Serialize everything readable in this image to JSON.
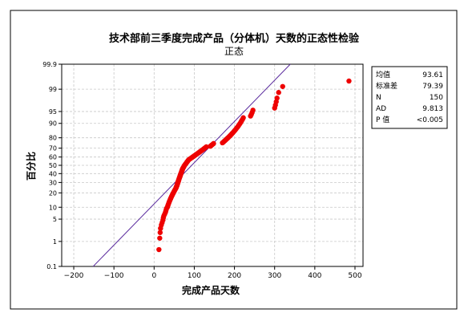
{
  "chart_data": {
    "type": "scatter",
    "title": "技术部前三季度完成产品（分体机）天数的正态性检验",
    "subtitle": "正态",
    "xlabel": "完成产品天数",
    "ylabel": "百分比",
    "xlim": [
      -230,
      520
    ],
    "x_ticks": [
      -200,
      -100,
      0,
      100,
      200,
      300,
      400,
      500
    ],
    "y_ticks": [
      0.1,
      1,
      5,
      10,
      20,
      30,
      40,
      50,
      60,
      70,
      80,
      90,
      95,
      99,
      99.9
    ],
    "y_tick_labels": [
      "0.1",
      "1",
      "5",
      "10",
      "20",
      "30",
      "40",
      "50",
      "60",
      "70",
      "80",
      "90",
      "95",
      "99",
      "99.9"
    ],
    "y_scale": "normal-probability",
    "grid": true,
    "fit_line": {
      "mean": 93.61,
      "stdev": 79.39
    },
    "stats": [
      {
        "label": "均值",
        "value": "93.61"
      },
      {
        "label": "标准差",
        "value": "79.39"
      },
      {
        "label": "N",
        "value": "150"
      },
      {
        "label": "AD",
        "value": "9.813"
      },
      {
        "label": "P 值",
        "value": "<0.005"
      }
    ],
    "point_color": "#ee0000",
    "line_color": "#5b2c9e",
    "points": [
      [
        12,
        0.5
      ],
      [
        14,
        1.3
      ],
      [
        15,
        2
      ],
      [
        16,
        2.7
      ],
      [
        18,
        3.4
      ],
      [
        20,
        4
      ],
      [
        22,
        4.7
      ],
      [
        23,
        5.4
      ],
      [
        24,
        6
      ],
      [
        26,
        6.7
      ],
      [
        28,
        7.4
      ],
      [
        29,
        8
      ],
      [
        30,
        8.7
      ],
      [
        31,
        9.4
      ],
      [
        33,
        10
      ],
      [
        34,
        10.7
      ],
      [
        35,
        11.4
      ],
      [
        36,
        12
      ],
      [
        37,
        12.7
      ],
      [
        38,
        13.4
      ],
      [
        39,
        14
      ],
      [
        40,
        14.7
      ],
      [
        41,
        15.4
      ],
      [
        42,
        16
      ],
      [
        43,
        16.7
      ],
      [
        44,
        17.4
      ],
      [
        45,
        18
      ],
      [
        46,
        18.7
      ],
      [
        47,
        19.4
      ],
      [
        48,
        20
      ],
      [
        49,
        20.7
      ],
      [
        50,
        21.4
      ],
      [
        51,
        22
      ],
      [
        52,
        22.7
      ],
      [
        53,
        23.4
      ],
      [
        54,
        24
      ],
      [
        55,
        24.7
      ],
      [
        55,
        25.4
      ],
      [
        56,
        26
      ],
      [
        57,
        26.7
      ],
      [
        57,
        27.4
      ],
      [
        58,
        28
      ],
      [
        58,
        28.7
      ],
      [
        59,
        29.4
      ],
      [
        59,
        30
      ],
      [
        60,
        30.7
      ],
      [
        60,
        31.4
      ],
      [
        61,
        32
      ],
      [
        61,
        32.7
      ],
      [
        62,
        33.4
      ],
      [
        62,
        34
      ],
      [
        63,
        34.7
      ],
      [
        63,
        35.4
      ],
      [
        64,
        36
      ],
      [
        64,
        36.7
      ],
      [
        65,
        37.4
      ],
      [
        65,
        38
      ],
      [
        66,
        38.7
      ],
      [
        66,
        39.4
      ],
      [
        67,
        40
      ],
      [
        67,
        40.7
      ],
      [
        68,
        41.4
      ],
      [
        68,
        42
      ],
      [
        69,
        42.7
      ],
      [
        69,
        43.4
      ],
      [
        70,
        44
      ],
      [
        70,
        44.7
      ],
      [
        71,
        45.4
      ],
      [
        71,
        46
      ],
      [
        72,
        46.7
      ],
      [
        73,
        47.4
      ],
      [
        74,
        48
      ],
      [
        74,
        48.7
      ],
      [
        75,
        49.4
      ],
      [
        76,
        50
      ],
      [
        77,
        50.7
      ],
      [
        78,
        51.4
      ],
      [
        79,
        52
      ],
      [
        80,
        52.7
      ],
      [
        81,
        53.4
      ],
      [
        82,
        54
      ],
      [
        83,
        54.7
      ],
      [
        84,
        55.4
      ],
      [
        85,
        56
      ],
      [
        86,
        56.7
      ],
      [
        88,
        57.4
      ],
      [
        90,
        58
      ],
      [
        92,
        58.7
      ],
      [
        94,
        59.4
      ],
      [
        96,
        60
      ],
      [
        98,
        60.7
      ],
      [
        100,
        61.4
      ],
      [
        102,
        62
      ],
      [
        104,
        62.7
      ],
      [
        106,
        63.4
      ],
      [
        108,
        64
      ],
      [
        110,
        64.7
      ],
      [
        112,
        65.4
      ],
      [
        114,
        66
      ],
      [
        116,
        66.7
      ],
      [
        118,
        67.4
      ],
      [
        120,
        68
      ],
      [
        122,
        68.7
      ],
      [
        124,
        69.4
      ],
      [
        126,
        70
      ],
      [
        128,
        70.7
      ],
      [
        130,
        71.4
      ],
      [
        140,
        72
      ],
      [
        142,
        72.7
      ],
      [
        144,
        73.4
      ],
      [
        146,
        74
      ],
      [
        148,
        74.7
      ],
      [
        170,
        75.4
      ],
      [
        172,
        76
      ],
      [
        174,
        76.7
      ],
      [
        176,
        77.4
      ],
      [
        178,
        78
      ],
      [
        180,
        78.7
      ],
      [
        182,
        79.4
      ],
      [
        184,
        80
      ],
      [
        186,
        80.7
      ],
      [
        188,
        81.4
      ],
      [
        190,
        82
      ],
      [
        192,
        82.7
      ],
      [
        194,
        83.4
      ],
      [
        196,
        84
      ],
      [
        198,
        84.7
      ],
      [
        200,
        85.4
      ],
      [
        202,
        86
      ],
      [
        204,
        86.7
      ],
      [
        206,
        87.4
      ],
      [
        208,
        88
      ],
      [
        210,
        88.7
      ],
      [
        212,
        89.4
      ],
      [
        214,
        90
      ],
      [
        216,
        90.7
      ],
      [
        218,
        91.4
      ],
      [
        220,
        92
      ],
      [
        222,
        92.7
      ],
      [
        240,
        93.4
      ],
      [
        242,
        94
      ],
      [
        244,
        94.7
      ],
      [
        246,
        95.4
      ],
      [
        300,
        96
      ],
      [
        302,
        96.7
      ],
      [
        304,
        97.4
      ],
      [
        306,
        98
      ],
      [
        310,
        98.7
      ],
      [
        320,
        99.2
      ],
      [
        485,
        99.5
      ]
    ]
  }
}
